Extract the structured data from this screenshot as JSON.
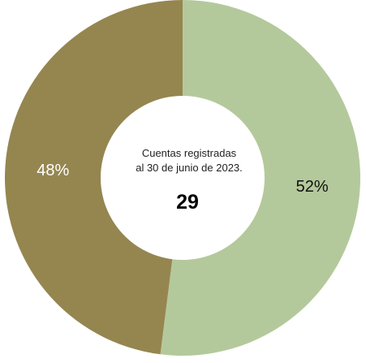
{
  "chart_data": {
    "type": "pie",
    "variant": "donut",
    "categories": [
      "",
      ""
    ],
    "values": [
      52,
      48
    ],
    "labels": [
      "52%",
      "48%"
    ],
    "colors": [
      "#b4c99b",
      "#958650"
    ],
    "start_angle_deg": 0,
    "direction": "clockwise",
    "center": {
      "caption_line1": "Cuentas registradas",
      "caption_line2": "al 30 de junio de 2023.",
      "total": "29"
    },
    "legend": "none"
  }
}
